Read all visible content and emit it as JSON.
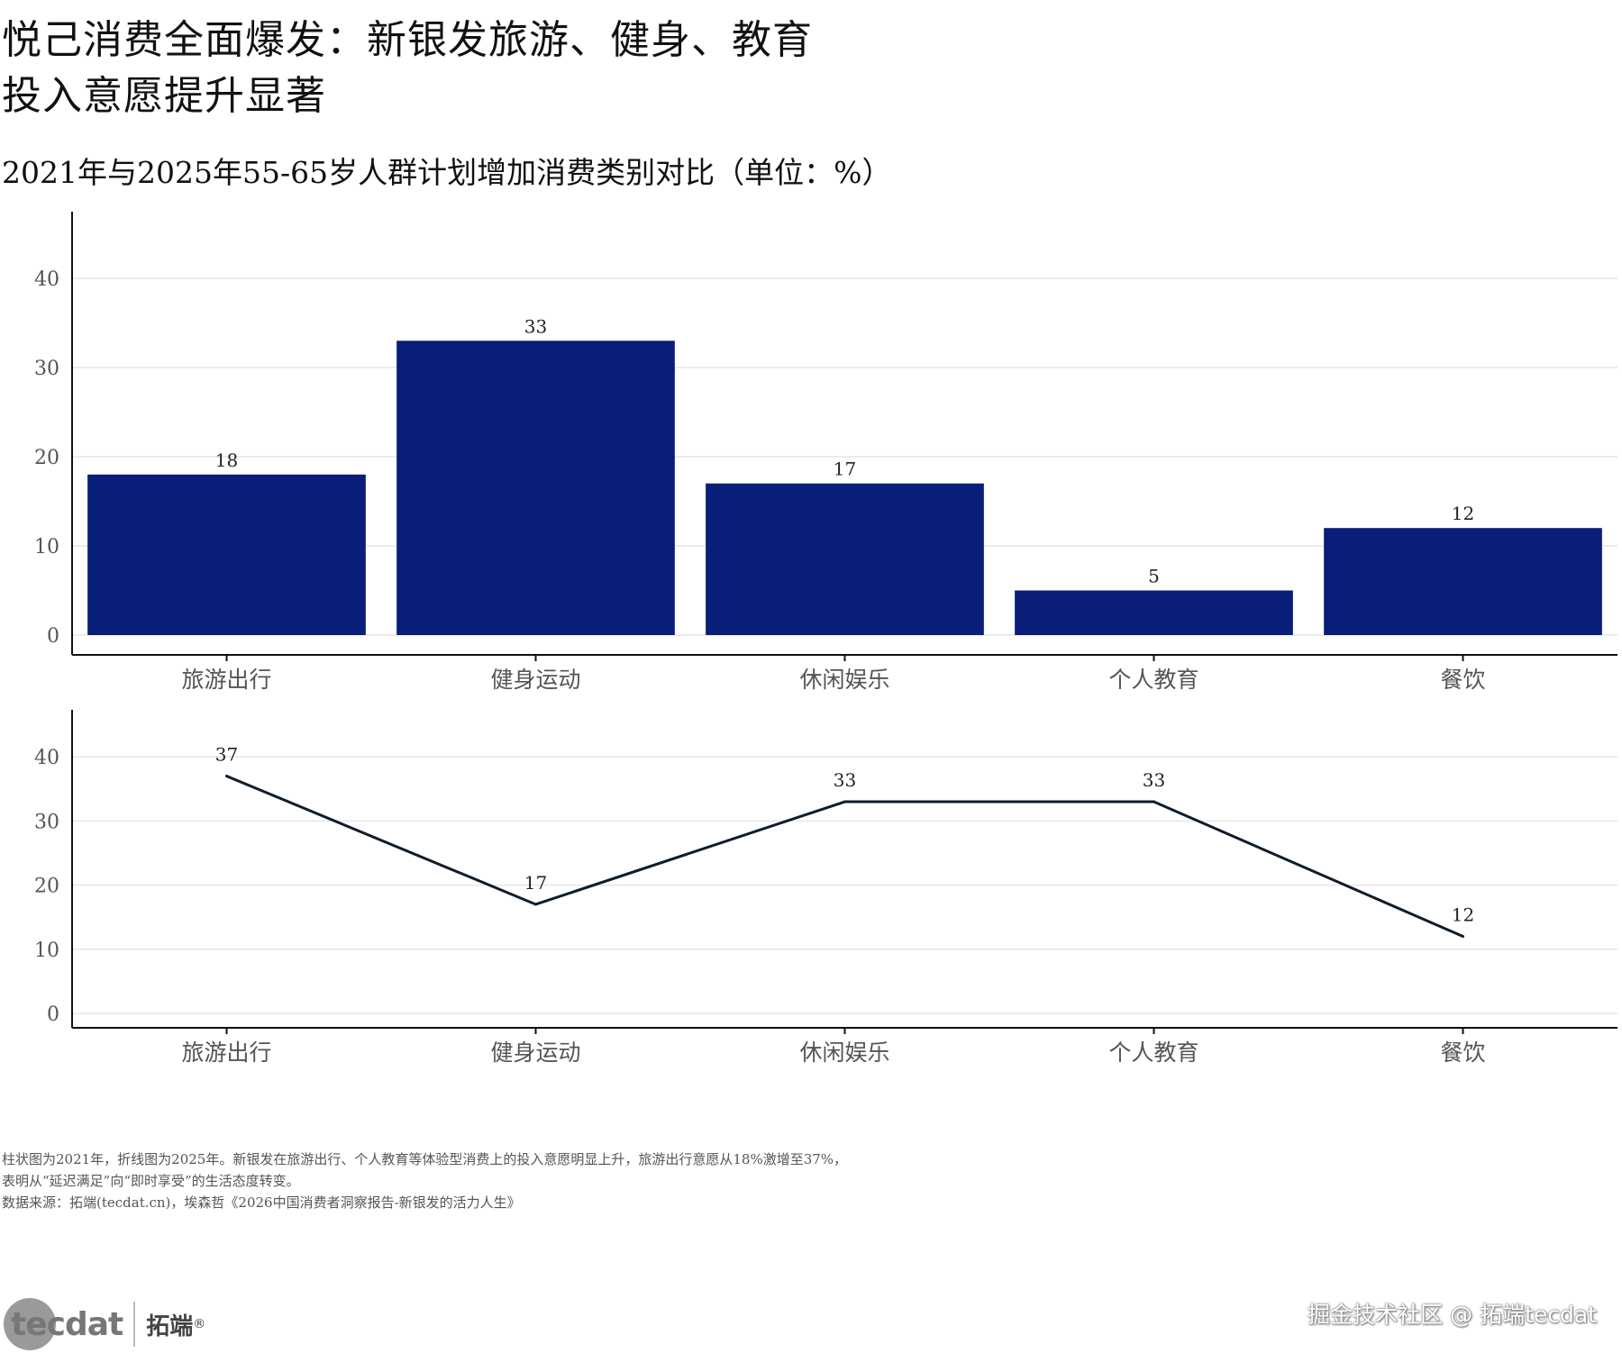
{
  "title_line1": "悦己消费全面爆发：新银发旅游、健身、教育",
  "title_line2": "投入意愿提升显著",
  "subtitle": "2021年与2025年55-65岁人群计划增加消费类别对比（单位：%）",
  "colors": {
    "bar": "#081e78",
    "line": "#0f1c2c",
    "grid": "#e6e6e6",
    "axis": "#111111"
  },
  "chart_data": [
    {
      "type": "bar",
      "categories": [
        "旅游出行",
        "健身运动",
        "休闲娱乐",
        "个人教育",
        "餐饮"
      ],
      "values": [
        18,
        33,
        17,
        5,
        12
      ],
      "yticks": [
        0,
        10,
        20,
        30,
        40
      ],
      "ylim": [
        0,
        45
      ],
      "data_labels": true,
      "grid": true
    },
    {
      "type": "line",
      "categories": [
        "旅游出行",
        "健身运动",
        "休闲娱乐",
        "个人教育",
        "餐饮"
      ],
      "values": [
        37,
        17,
        33,
        33,
        12
      ],
      "yticks": [
        0,
        10,
        20,
        30,
        40
      ],
      "ylim": [
        0,
        46
      ],
      "data_labels": true,
      "grid": true
    }
  ],
  "footnote": {
    "line1": "柱状图为2021年，折线图为2025年。新银发在旅游出行、个人教育等体验型消费上的投入意愿明显上升，旅游出行意愿从18%激增至37%，",
    "line2": "表明从“延迟满足”向“即时享受”的生活态度转变。",
    "source": "数据来源：拓端(tecdat.cn)，埃森哲《2026中国消费者洞察报告-新银发的活力人生》"
  },
  "logo": {
    "text": "tecdat",
    "brand": "拓端",
    "reg": "®"
  },
  "watermark": "掘金技术社区 @ 拓端tecdat"
}
